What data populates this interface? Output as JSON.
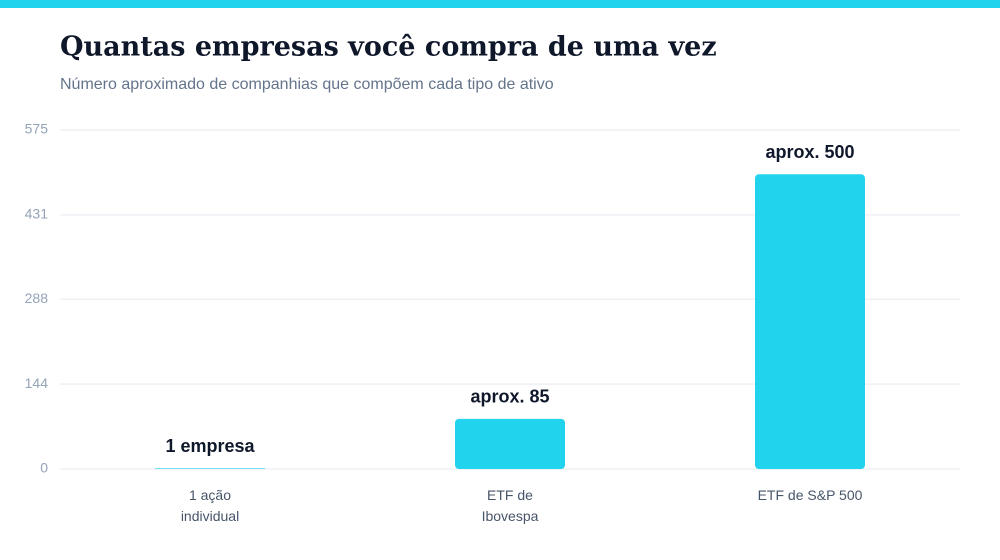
{
  "chart_data": {
    "type": "bar",
    "title": "Quantas empresas você compra de uma vez",
    "subtitle": "Número aproximado de companhias que compõem cada tipo de ativo",
    "categories": [
      "1 ação\nindividual",
      "ETF de\nIbovespa",
      "ETF de S&P 500"
    ],
    "values": [
      1,
      85,
      500
    ],
    "value_labels": [
      "1 empresa",
      "aprox. 85",
      "aprox. 500"
    ],
    "color": "#22d3ee",
    "ylim": [
      0,
      575
    ],
    "yticks": [
      0,
      144,
      288,
      431,
      575
    ],
    "grid": true
  }
}
